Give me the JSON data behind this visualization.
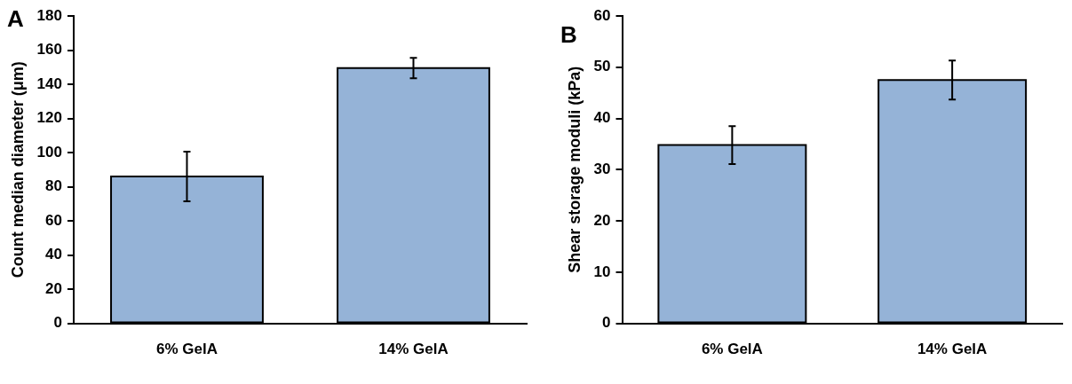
{
  "chart_data": [
    {
      "type": "bar",
      "categories": [
        "6% GelA",
        "14% GelA"
      ],
      "values": [
        86,
        149.5
      ],
      "errors": [
        14.5,
        6
      ],
      "color": "#95b3d7",
      "ylabel": "Count median diameter (μm)",
      "ylim": [
        0,
        180
      ],
      "yticks": [
        0,
        20,
        40,
        60,
        80,
        100,
        120,
        140,
        160,
        180
      ],
      "grid": false,
      "legend": false,
      "annotations": [
        "A"
      ]
    },
    {
      "type": "bar",
      "categories": [
        "6% GelA",
        "14% GelA"
      ],
      "values": [
        34.8,
        47.5
      ],
      "errors": [
        3.7,
        3.8
      ],
      "color": "#95b3d7",
      "ylabel": "Shear storage moduli (kPa)",
      "ylim": [
        0,
        60
      ],
      "yticks": [
        0,
        10,
        20,
        30,
        40,
        50,
        60
      ],
      "grid": false,
      "legend": false,
      "annotations": [
        "B"
      ]
    }
  ]
}
